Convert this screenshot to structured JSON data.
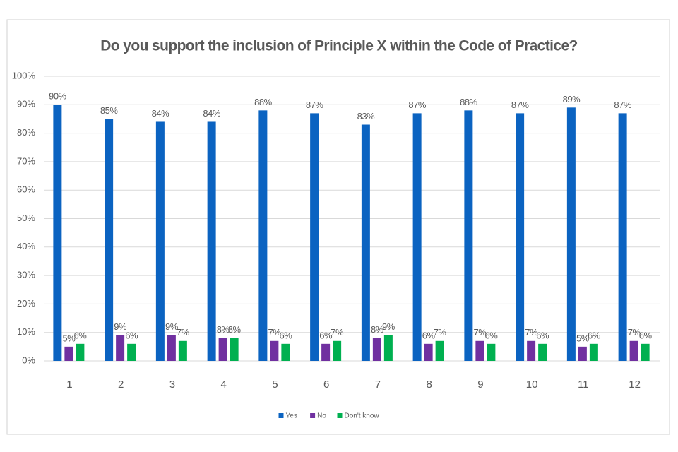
{
  "chart_data": {
    "type": "bar",
    "title": "Do you support the inclusion of Principle X within the Code of Practice?",
    "categories": [
      "1",
      "2",
      "3",
      "4",
      "5",
      "6",
      "7",
      "8",
      "9",
      "10",
      "11",
      "12"
    ],
    "series": [
      {
        "name": "Yes",
        "color": "#0b63c1",
        "values": [
          90,
          85,
          84,
          84,
          88,
          87,
          83,
          87,
          88,
          87,
          89,
          87
        ],
        "value_labels": [
          "90%",
          "85%",
          "84%",
          "84%",
          "88%",
          "87%",
          "83%",
          "87%",
          "88%",
          "87%",
          "89%",
          "87%"
        ]
      },
      {
        "name": "No",
        "color": "#7030a0",
        "values": [
          5,
          9,
          9,
          8,
          7,
          6,
          8,
          6,
          7,
          7,
          5,
          7
        ],
        "value_labels": [
          "5%",
          "9%",
          "9%",
          "8%",
          "7%",
          "6%",
          "8%",
          "6%",
          "7%",
          "7%",
          "5%",
          "7%"
        ]
      },
      {
        "name": "Don't know",
        "color": "#00b050",
        "values": [
          6,
          6,
          7,
          8,
          6,
          7,
          9,
          7,
          6,
          6,
          6,
          6
        ],
        "value_labels": [
          "6%",
          "6%",
          "7%",
          "8%",
          "6%",
          "7%",
          "9%",
          "7%",
          "6%",
          "6%",
          "6%",
          "6%"
        ]
      }
    ],
    "ylim": [
      0,
      100
    ],
    "yticks": [
      {
        "value": 0,
        "label": "0%"
      },
      {
        "value": 10,
        "label": "10%"
      },
      {
        "value": 20,
        "label": "20%"
      },
      {
        "value": 30,
        "label": "30%"
      },
      {
        "value": 40,
        "label": "40%"
      },
      {
        "value": 50,
        "label": "50%"
      },
      {
        "value": 60,
        "label": "60%"
      },
      {
        "value": 70,
        "label": "70%"
      },
      {
        "value": 80,
        "label": "80%"
      },
      {
        "value": 90,
        "label": "90%"
      },
      {
        "value": 100,
        "label": "100%"
      }
    ],
    "grid": true,
    "legend": "bottom"
  }
}
